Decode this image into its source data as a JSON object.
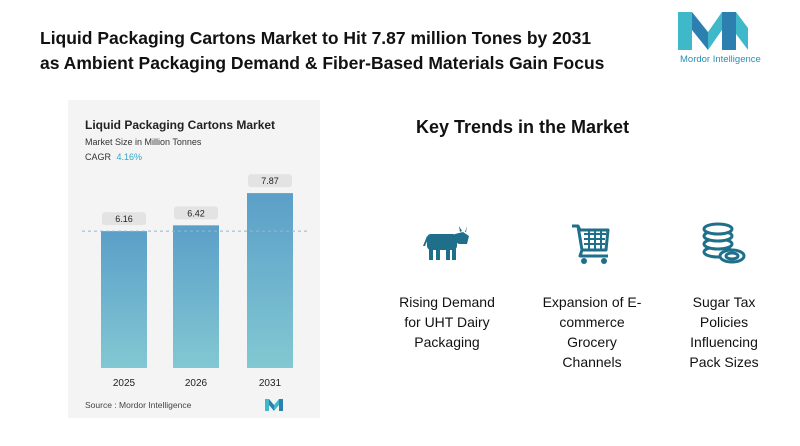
{
  "headline": {
    "line1": "Liquid Packaging Cartons Market to Hit 7.87 million Tones by 2031",
    "line2": "as Ambient Packaging Demand & Fiber-Based Materials Gain Focus"
  },
  "brand": {
    "name": "Mordor Intelligence",
    "color": "#2a8fb5"
  },
  "chart_data": {
    "type": "bar",
    "title": "Liquid Packaging Cartons Market",
    "subtitle": "Market Size in Million Tonnes",
    "cagr_label": "CAGR",
    "cagr_value": "4.16%",
    "categories": [
      "2025",
      "2026",
      "2031"
    ],
    "values": [
      6.16,
      6.42,
      7.87
    ],
    "value_labels": [
      "6.16",
      "6.42",
      "7.87"
    ],
    "ylim": [
      0,
      9
    ],
    "reference_line_value": 6.16,
    "bar_gradient": [
      "#5b9fc8",
      "#82c8d2"
    ],
    "grid": false,
    "source": "Source :  Mordor Intelligence"
  },
  "trends": {
    "title": "Key Trends in the Market",
    "icon_color": "#1f6f8b",
    "items": [
      {
        "icon": "cow-icon",
        "label_lines": [
          "Rising Demand",
          "for UHT Dairy",
          "Packaging"
        ]
      },
      {
        "icon": "shopping-cart-icon",
        "label_lines": [
          "Expansion of E-",
          "commerce",
          "Grocery",
          "Channels"
        ]
      },
      {
        "icon": "coin-stack-icon",
        "label_lines": [
          "Sugar Tax",
          "Policies",
          "Influencing",
          "Pack Sizes"
        ]
      }
    ]
  }
}
